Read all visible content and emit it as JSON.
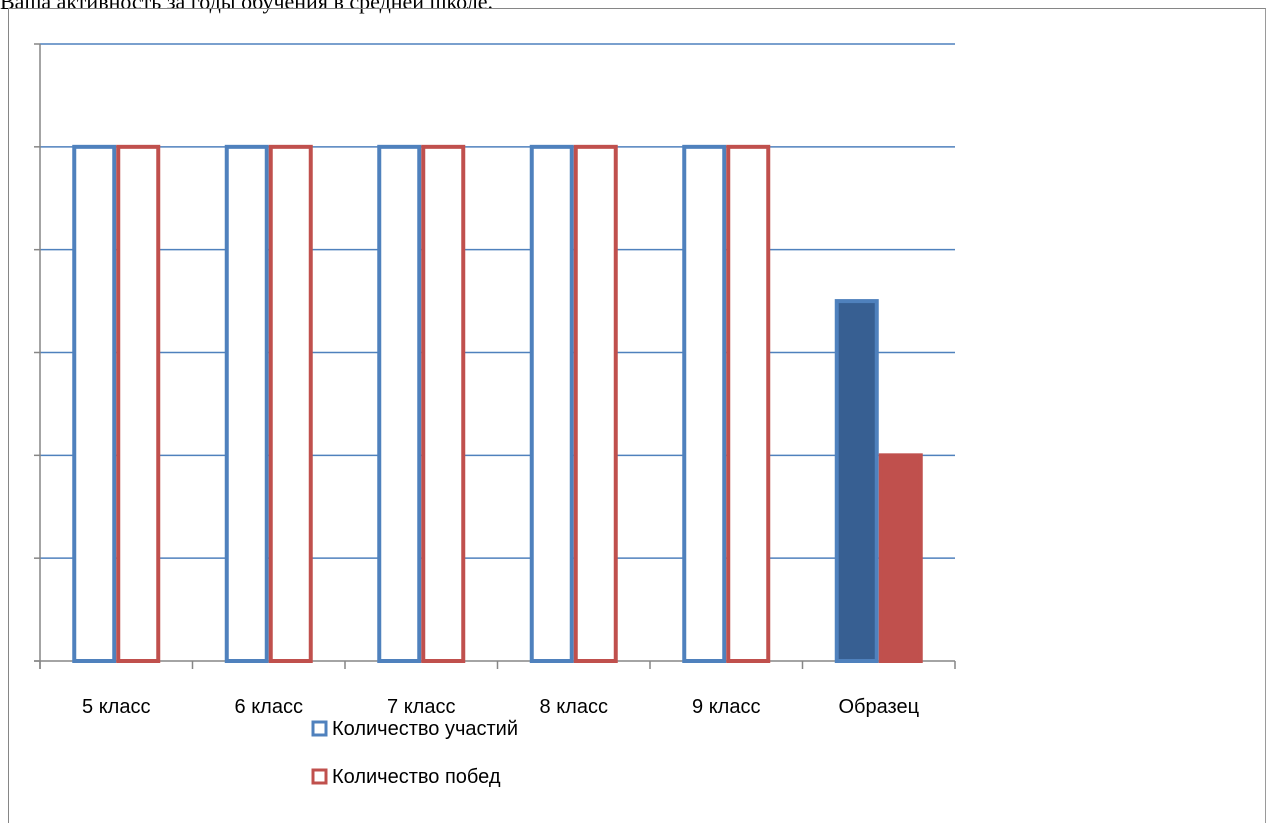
{
  "document": {
    "partial_line": "Ваша активность за годы обучения в средней школе."
  },
  "colors": {
    "series1": "#4f81bd",
    "series1_fill_dark": "#375f92",
    "series2": "#c0504d",
    "gridline": "#4f81bd",
    "axis": "#868686"
  },
  "chart_data": {
    "type": "bar",
    "categories": [
      "5 класс",
      "6 класс",
      "7 класс",
      "8 класс",
      "9 класс",
      "Образец"
    ],
    "series": [
      {
        "name": "Количество участий",
        "values": [
          5,
          5,
          5,
          5,
          5,
          3.5
        ],
        "style": [
          "outline",
          "outline",
          "outline",
          "outline",
          "outline",
          "filled"
        ]
      },
      {
        "name": "Количество побед",
        "values": [
          5,
          5,
          5,
          5,
          5,
          2
        ],
        "style": [
          "outline",
          "outline",
          "outline",
          "outline",
          "outline",
          "filled"
        ]
      }
    ],
    "ylim": [
      0,
      6
    ],
    "ytick_step": 1,
    "y_tick_labels_visible": false,
    "grid": true,
    "legend_position": "bottom",
    "title": "",
    "xlabel": "",
    "ylabel": ""
  }
}
